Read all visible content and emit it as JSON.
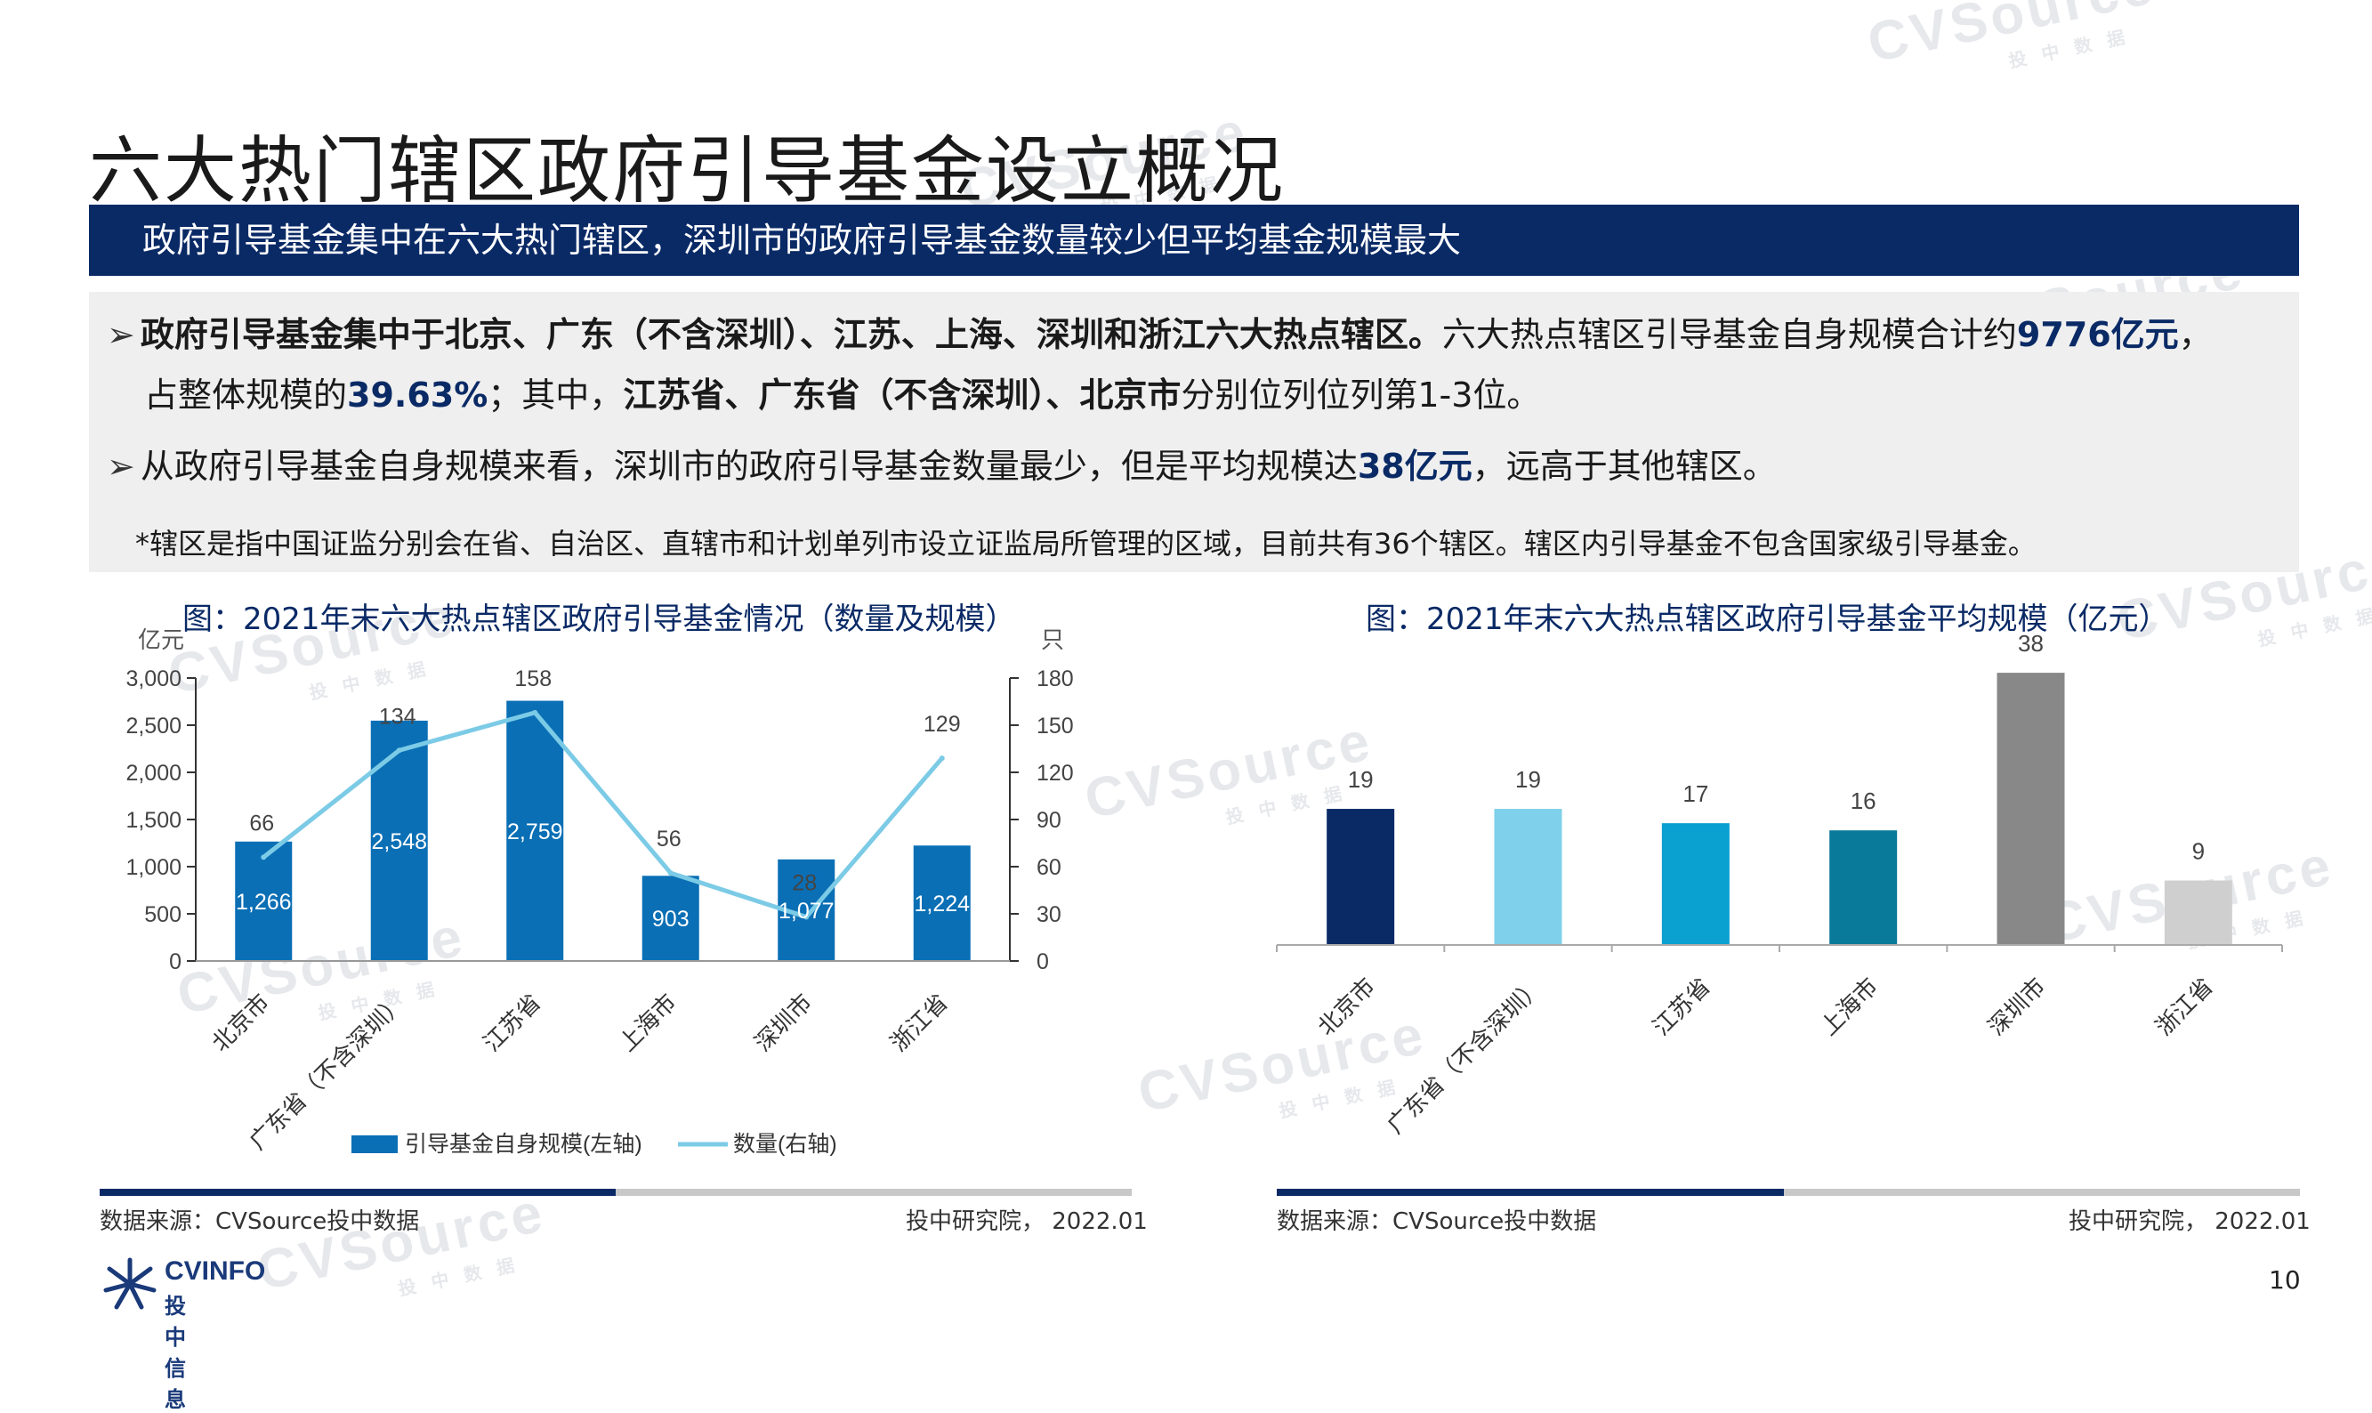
{
  "title": "六大热门辖区政府引导基金设立概况",
  "banner": "政府引导基金集中在六大热门辖区，深圳市的政府引导基金数量较少但平均基金规模最大",
  "summary": {
    "b1_bold": "政府引导基金集中于北京、广东（不含深圳）、江苏、上海、深圳和浙江六大热点辖区。",
    "b1_a": "六大热点辖区引导基金自身规模合计约",
    "b1_hl1": "9776亿元",
    "b1_b": "，",
    "b1_c": "占整体规模的",
    "b1_hl2": "39.63%",
    "b1_d": "；其中，",
    "b1_bold2": "江苏省、广东省（不含深圳）、北京市",
    "b1_e": "分别位列位列第1-3位。",
    "b2_a": "从政府引导基金自身规模来看，深圳市的政府引导基金数量最少，但是平均规模达",
    "b2_hl": "38亿元",
    "b2_b": "，远高于其他辖区。",
    "note": "*辖区是指中国证监分别会在省、自治区、直辖市和计划单列市设立证监局所管理的区域，目前共有36个辖区。辖区内引导基金不包含国家级引导基金。"
  },
  "chart1_title": "图：2021年末六大热点辖区政府引导基金情况（数量及规模）",
  "chart2_title": "图：2021年末六大热点辖区政府引导基金平均规模（亿元）",
  "chart_data": [
    {
      "type": "bar",
      "title": "图：2021年末六大热点辖区政府引导基金情况（数量及规模）",
      "categories": [
        "北京市",
        "广东省（不含深圳）",
        "江苏省",
        "上海市",
        "深圳市",
        "浙江省"
      ],
      "series": [
        {
          "name": "引导基金自身规模(左轴)",
          "type": "bar",
          "axis": "left",
          "values": [
            1266,
            2548,
            2759,
            903,
            1077,
            1224
          ],
          "labels": [
            "1,266",
            "2,548",
            "2,759",
            "903",
            "1,077",
            "1,224"
          ],
          "color": "#0a6fb5"
        },
        {
          "name": "数量(右轴)",
          "type": "line",
          "axis": "right",
          "values": [
            66,
            134,
            158,
            56,
            28,
            129
          ],
          "color": "#7ccbe6"
        }
      ],
      "ylabel_left": "亿元",
      "ylabel_right": "只",
      "ylim_left": [
        0,
        3000
      ],
      "ylim_right": [
        0,
        180
      ],
      "yticks_left": [
        "0",
        "500",
        "1,000",
        "1,500",
        "2,000",
        "2,500",
        "3,000"
      ],
      "yticks_right": [
        "0",
        "30",
        "60",
        "90",
        "120",
        "150",
        "180"
      ],
      "legend_position": "bottom"
    },
    {
      "type": "bar",
      "title": "图：2021年末六大热点辖区政府引导基金平均规模（亿元）",
      "categories": [
        "北京市",
        "广东省（不含深圳）",
        "江苏省",
        "上海市",
        "深圳市",
        "浙江省"
      ],
      "values": [
        19,
        19,
        17,
        16,
        38,
        9
      ],
      "colors": [
        "#0a2a66",
        "#7fd0ea",
        "#0aa0d0",
        "#0a7a9a",
        "#888888",
        "#cfcfcf"
      ],
      "ylim": [
        0,
        40
      ]
    }
  ],
  "source": {
    "left": "数据来源：CVSource投中数据",
    "right": "投中研究院，  2022.01",
    "bar_dark": "#0a2a66",
    "bar_light": "#c8c8c8"
  },
  "page_number": "10",
  "logo": {
    "en": "CVINFO",
    "cn": "投中信息"
  },
  "watermark": {
    "big": "CVSource",
    "small": "投 中 数 据"
  }
}
